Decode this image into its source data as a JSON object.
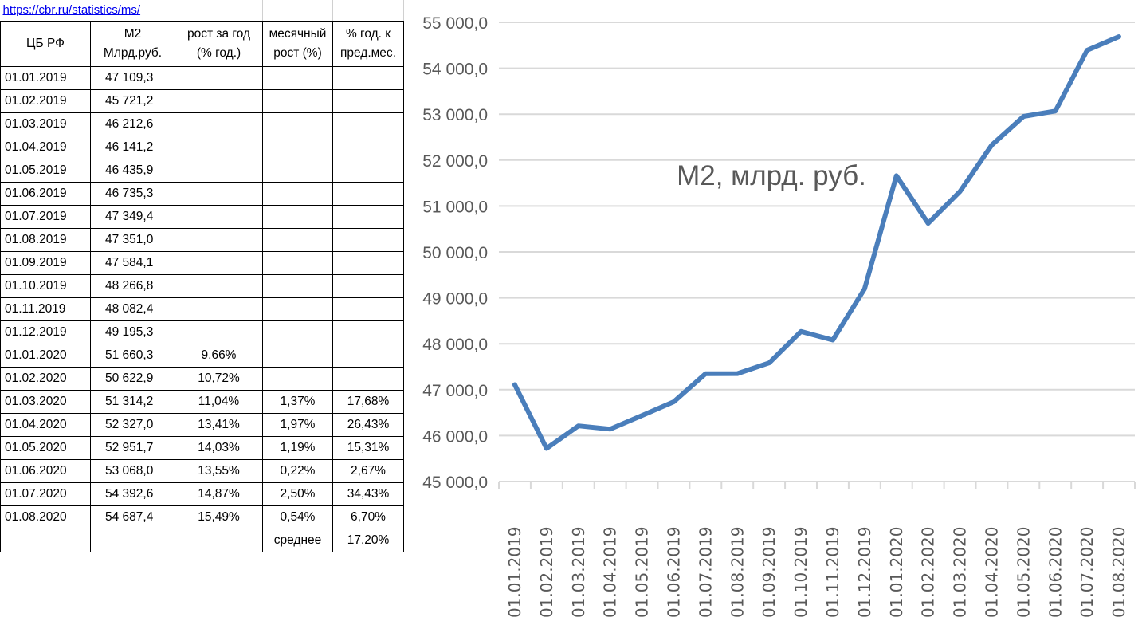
{
  "sheet": {
    "url": "https://cbr.ru/statistics/ms/",
    "headers": {
      "col1": "ЦБ РФ",
      "col2_line1": "М2",
      "col2_line2": "Млрд.руб.",
      "col3_line1": "рост за год",
      "col3_line2": "(% год.)",
      "col4_line1": "месячный",
      "col4_line2": "рост (%)",
      "col5_line1": "% год. к",
      "col5_line2": "пред.мес."
    },
    "rows": [
      {
        "date": "01.01.2019",
        "m2": "47 109,3",
        "yoy": "",
        "mom": "",
        "ann": ""
      },
      {
        "date": "01.02.2019",
        "m2": "45 721,2",
        "yoy": "",
        "mom": "",
        "ann": ""
      },
      {
        "date": "01.03.2019",
        "m2": "46 212,6",
        "yoy": "",
        "mom": "",
        "ann": ""
      },
      {
        "date": "01.04.2019",
        "m2": "46 141,2",
        "yoy": "",
        "mom": "",
        "ann": ""
      },
      {
        "date": "01.05.2019",
        "m2": "46 435,9",
        "yoy": "",
        "mom": "",
        "ann": ""
      },
      {
        "date": "01.06.2019",
        "m2": "46 735,3",
        "yoy": "",
        "mom": "",
        "ann": ""
      },
      {
        "date": "01.07.2019",
        "m2": "47 349,4",
        "yoy": "",
        "mom": "",
        "ann": ""
      },
      {
        "date": "01.08.2019",
        "m2": "47 351,0",
        "yoy": "",
        "mom": "",
        "ann": ""
      },
      {
        "date": "01.09.2019",
        "m2": "47 584,1",
        "yoy": "",
        "mom": "",
        "ann": ""
      },
      {
        "date": "01.10.2019",
        "m2": "48 266,8",
        "yoy": "",
        "mom": "",
        "ann": ""
      },
      {
        "date": "01.11.2019",
        "m2": "48 082,4",
        "yoy": "",
        "mom": "",
        "ann": ""
      },
      {
        "date": "01.12.2019",
        "m2": "49 195,3",
        "yoy": "",
        "mom": "",
        "ann": ""
      },
      {
        "date": "01.01.2020",
        "m2": "51 660,3",
        "yoy": "9,66%",
        "mom": "",
        "ann": ""
      },
      {
        "date": "01.02.2020",
        "m2": "50 622,9",
        "yoy": "10,72%",
        "mom": "",
        "ann": ""
      },
      {
        "date": "01.03.2020",
        "m2": "51 314,2",
        "yoy": "11,04%",
        "mom": "1,37%",
        "ann": "17,68%"
      },
      {
        "date": "01.04.2020",
        "m2": "52 327,0",
        "yoy": "13,41%",
        "mom": "1,97%",
        "ann": "26,43%"
      },
      {
        "date": "01.05.2020",
        "m2": "52 951,7",
        "yoy": "14,03%",
        "mom": "1,19%",
        "ann": "15,31%"
      },
      {
        "date": "01.06.2020",
        "m2": "53 068,0",
        "yoy": "13,55%",
        "mom": "0,22%",
        "ann": "2,67%"
      },
      {
        "date": "01.07.2020",
        "m2": "54 392,6",
        "yoy": "14,87%",
        "mom": "2,50%",
        "ann": "34,43%"
      },
      {
        "date": "01.08.2020",
        "m2": "54 687,4",
        "yoy": "15,49%",
        "mom": "0,54%",
        "ann": "6,70%"
      }
    ],
    "footer": {
      "label": "среднее",
      "value": "17,20%"
    }
  },
  "colors": {
    "line": "#4a7ebb",
    "gridline": "#d9d9d9",
    "axis_text": "#595959",
    "title_text": "#595959"
  },
  "chart_data": {
    "type": "line",
    "title": "М2, млрд. руб.",
    "categories": [
      "01.01.2019",
      "01.02.2019",
      "01.03.2019",
      "01.04.2019",
      "01.05.2019",
      "01.06.2019",
      "01.07.2019",
      "01.08.2019",
      "01.09.2019",
      "01.10.2019",
      "01.11.2019",
      "01.12.2019",
      "01.01.2020",
      "01.02.2020",
      "01.03.2020",
      "01.04.2020",
      "01.05.2020",
      "01.06.2020",
      "01.07.2020",
      "01.08.2020"
    ],
    "series": [
      {
        "values": [
          47109.3,
          45721.2,
          46212.6,
          46141.2,
          46435.9,
          46735.3,
          47349.4,
          47351.0,
          47584.1,
          48266.8,
          48082.4,
          49195.3,
          51660.3,
          50622.9,
          51314.2,
          52327.0,
          52951.7,
          53068.0,
          54392.6,
          54687.4
        ]
      }
    ],
    "ylim": [
      45000,
      55000
    ],
    "yticks": [
      45000,
      46000,
      47000,
      48000,
      49000,
      50000,
      51000,
      52000,
      53000,
      54000,
      55000
    ],
    "ytick_labels": [
      "45 000,0",
      "46 000,0",
      "47 000,0",
      "48 000,0",
      "49 000,0",
      "50 000,0",
      "51 000,0",
      "52 000,0",
      "53 000,0",
      "54 000,0",
      "55 000,0"
    ],
    "grid": true,
    "legend": "none"
  }
}
